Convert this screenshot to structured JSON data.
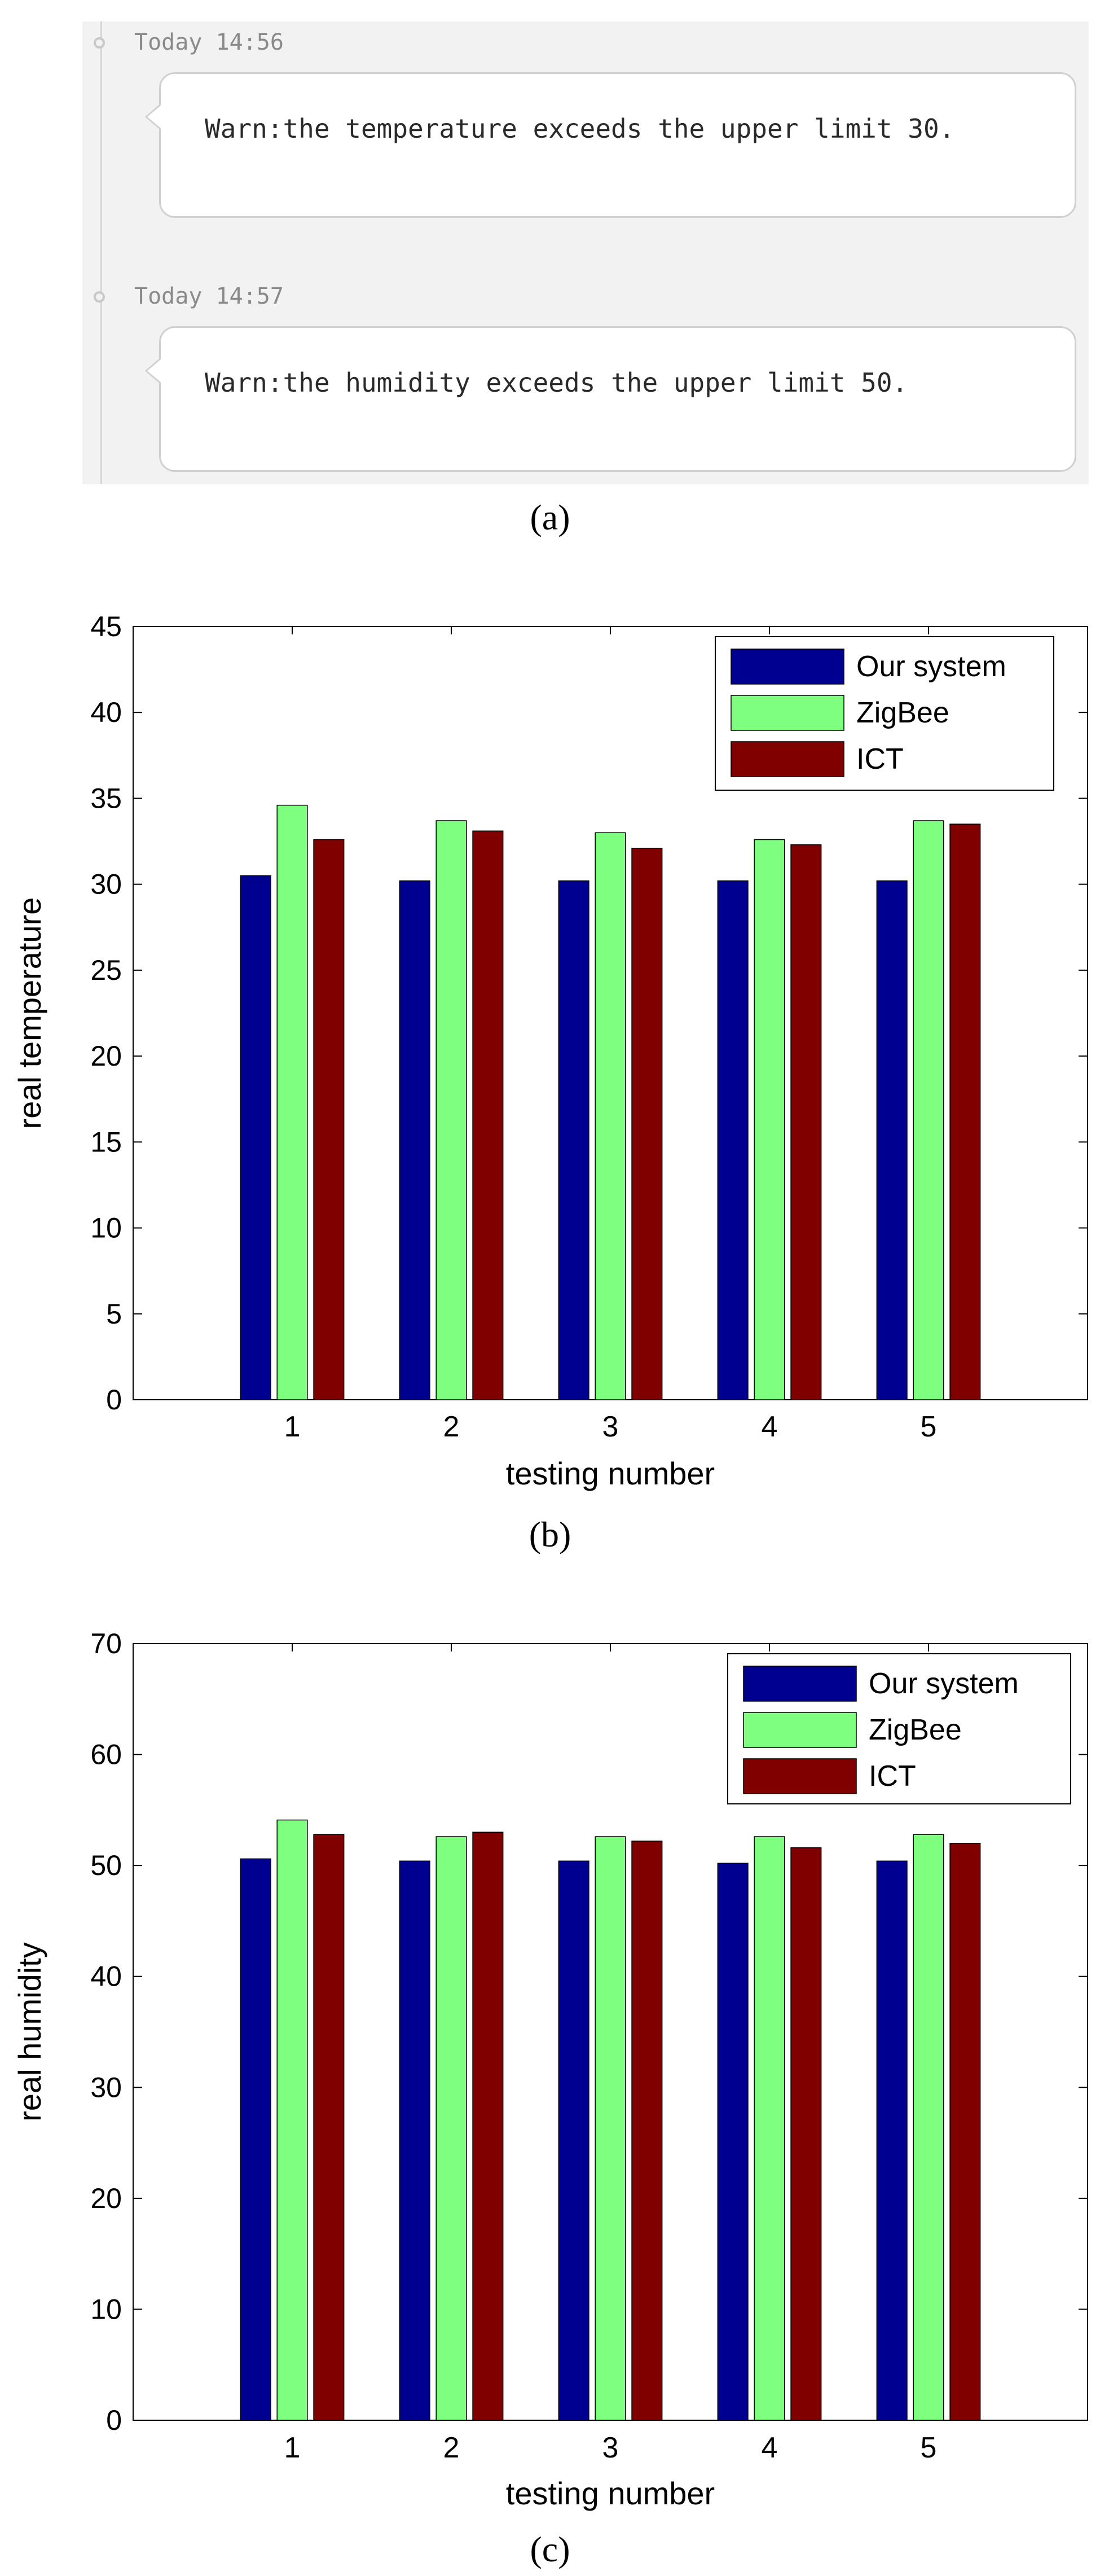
{
  "panel_a": {
    "entries": [
      {
        "time": "Today 14:56",
        "message": "Warn:the temperature exceeds the upper limit 30."
      },
      {
        "time": "Today 14:57",
        "message": "Warn:the humidity exceeds the upper limit 50."
      }
    ],
    "caption": "(a)"
  },
  "colors": {
    "our_system": "#000090",
    "zigbee": "#7fff7f",
    "ict": "#800000"
  },
  "chart_data": [
    {
      "type": "bar",
      "categories": [
        "1",
        "2",
        "3",
        "4",
        "5"
      ],
      "series": [
        {
          "name": "Our system",
          "values": [
            30.5,
            30.2,
            30.2,
            30.2,
            30.2
          ]
        },
        {
          "name": "ZigBee",
          "values": [
            34.6,
            33.7,
            33.0,
            32.6,
            33.7
          ]
        },
        {
          "name": "ICT",
          "values": [
            32.6,
            33.1,
            32.1,
            32.3,
            33.5
          ]
        }
      ],
      "title": "",
      "xlabel": "testing number",
      "ylabel": "real temperature",
      "ylim": [
        0,
        45
      ],
      "yticks": [
        "0",
        "5",
        "10",
        "15",
        "20",
        "25",
        "30",
        "35",
        "40",
        "45"
      ],
      "legend": "top-right",
      "caption": "(b)"
    },
    {
      "type": "bar",
      "categories": [
        "1",
        "2",
        "3",
        "4",
        "5"
      ],
      "series": [
        {
          "name": "Our system",
          "values": [
            50.6,
            50.4,
            50.4,
            50.2,
            50.4
          ]
        },
        {
          "name": "ZigBee",
          "values": [
            54.1,
            52.6,
            52.6,
            52.6,
            52.8
          ]
        },
        {
          "name": "ICT",
          "values": [
            52.8,
            53.0,
            52.2,
            51.6,
            52.0
          ]
        }
      ],
      "title": "",
      "xlabel": "testing number",
      "ylabel": "real humidity",
      "ylim": [
        0,
        70
      ],
      "yticks": [
        "0",
        "10",
        "20",
        "30",
        "40",
        "50",
        "60",
        "70"
      ],
      "legend": "top-right",
      "caption": "(c)"
    }
  ]
}
